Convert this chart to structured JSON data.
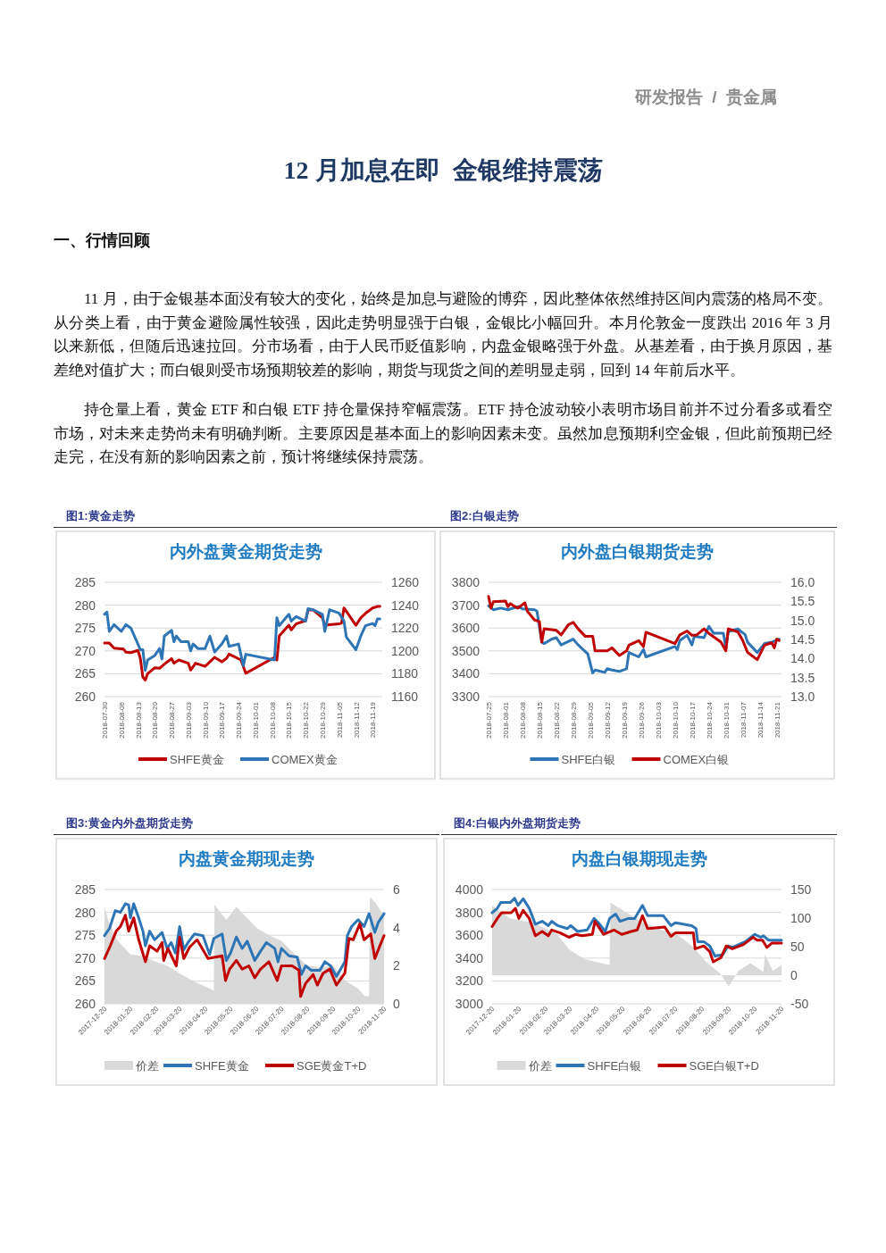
{
  "chart_data": [
    {
      "type": "other",
      "title": "12 月加息在即  金银维持震荡",
      "annotations": [
        "研发报告  /  贵金属",
        "一、行情回顾",
        "11 月，由于金银基本面没有较大的变化，始终是加息与避险的博弈，因此整体依然维持区间内震荡的格局不变。从分类上看，由于黄金避险属性较强，因此走势明显强于白银，金银比小幅回升。本月伦敦金一度跌出 2016 年 3 月以来新低，但随后迅速拉回。分市场看，由于人民币贬值影响，内盘金银略强于外盘。从基差看，由于换月原因，基差绝对值扩大；而白银则受市场预期较差的影响，期货与现货之间的差明显走弱，回到 14 年前后水平。",
        "持仓量上看，黄金 ETF 和白银 ETF 持仓量保持窄幅震荡。ETF 持仓波动较小表明市场目前并不过分看多或看空市场，对未来走势尚未有明确判断。主要原因是基本面上的影响因素未变。虽然加息预期利空金银，但此前预期已经走完，在没有新的影响因素之前，预计将继续保持震荡。"
      ]
    },
    {
      "type": "line",
      "subtitle": "图1:黄金走势",
      "title": "内外盘黄金期货走势",
      "xlim": [
        "2018-07-30",
        "2018-11-23"
      ],
      "xticks": [
        "2018-07-30",
        "2018-08-06",
        "2018-08-13",
        "2018-08-20",
        "2018-08-27",
        "2018-09-03",
        "2018-09-10",
        "2018-09-17",
        "2018-09-24",
        "2018-10-01",
        "2018-10-08",
        "2018-10-15",
        "2018-10-22",
        "2018-10-29",
        "2018-11-05",
        "2018-11-12",
        "2018-11-19"
      ],
      "ylim": [
        260,
        285
      ],
      "yticks": [
        260,
        265,
        270,
        275,
        280,
        285
      ],
      "y2lim": [
        1160,
        1260
      ],
      "y2ticks": [
        1160,
        1180,
        1200,
        1220,
        1240,
        1260
      ],
      "grid": "y",
      "legend": "bottom",
      "series": [
        {
          "name": "SHFE黄金",
          "color": "#c00000",
          "x": [
            "2018-07-30",
            "2018-08-01",
            "2018-08-03",
            "2018-08-07",
            "2018-08-08",
            "2018-08-10",
            "2018-08-13",
            "2018-08-14",
            "2018-08-15",
            "2018-08-16",
            "2018-08-17",
            "2018-08-20",
            "2018-08-22",
            "2018-08-24",
            "2018-08-27",
            "2018-08-28",
            "2018-08-30",
            "2018-09-03",
            "2018-09-04",
            "2018-09-06",
            "2018-09-10",
            "2018-09-12",
            "2018-09-14",
            "2018-09-17",
            "2018-09-19",
            "2018-09-20",
            "2018-09-25",
            "2018-09-27",
            "2018-10-09",
            "2018-10-10",
            "2018-10-11",
            "2018-10-15",
            "2018-10-16",
            "2018-10-18",
            "2018-10-19",
            "2018-10-22",
            "2018-10-23",
            "2018-10-25",
            "2018-10-29",
            "2018-10-30",
            "2018-11-05",
            "2018-11-06",
            "2018-11-07",
            "2018-11-12",
            "2018-11-14",
            "2018-11-16",
            "2018-11-19",
            "2018-11-21",
            "2018-11-22"
          ],
          "values": [
            271.7,
            271.7,
            270.6,
            270.4,
            269.7,
            269.6,
            270.1,
            268.3,
            264.3,
            263.6,
            265.0,
            266.3,
            266.2,
            267.1,
            268.3,
            267.3,
            268.0,
            267.3,
            265.8,
            267.3,
            266.6,
            267.6,
            268.6,
            267.6,
            268.4,
            269.3,
            268.0,
            265.1,
            268.6,
            268.0,
            273.3,
            275.6,
            274.6,
            275.9,
            276.1,
            276.6,
            278.9,
            279.0,
            277.2,
            275.6,
            275.9,
            276.1,
            279.4,
            275.6,
            277.2,
            278.2,
            279.4,
            279.7,
            279.7
          ]
        },
        {
          "name": "COMEX黄金",
          "color": "#2e75b6",
          "axis": "y2",
          "x": [
            "2018-07-30",
            "2018-07-31",
            "2018-08-01",
            "2018-08-03",
            "2018-08-06",
            "2018-08-08",
            "2018-08-10",
            "2018-08-14",
            "2018-08-15",
            "2018-08-16",
            "2018-08-17",
            "2018-08-20",
            "2018-08-22",
            "2018-08-23",
            "2018-08-24",
            "2018-08-27",
            "2018-08-28",
            "2018-08-29",
            "2018-08-31",
            "2018-09-03",
            "2018-09-04",
            "2018-09-05",
            "2018-09-07",
            "2018-09-10",
            "2018-09-12",
            "2018-09-14",
            "2018-09-17",
            "2018-09-19",
            "2018-09-20",
            "2018-09-24",
            "2018-09-26",
            "2018-09-27",
            "2018-10-09",
            "2018-10-10",
            "2018-10-11",
            "2018-10-15",
            "2018-10-16",
            "2018-10-18",
            "2018-10-22",
            "2018-10-23",
            "2018-10-25",
            "2018-10-29",
            "2018-10-30",
            "2018-11-01",
            "2018-11-05",
            "2018-11-07",
            "2018-11-08",
            "2018-11-12",
            "2018-11-14",
            "2018-11-16",
            "2018-11-19",
            "2018-11-20",
            "2018-11-21",
            "2018-11-22"
          ],
          "values": [
            1232,
            1234,
            1217,
            1223,
            1217,
            1223,
            1220,
            1201,
            1201,
            1183,
            1192,
            1196,
            1202,
            1193,
            1213,
            1218,
            1208,
            1213,
            1208,
            1208,
            1200,
            1206,
            1202,
            1202,
            1213,
            1199,
            1206,
            1213,
            1204,
            1206,
            1187,
            1197,
            1192,
            1229,
            1222,
            1232,
            1226,
            1230,
            1226,
            1237,
            1236,
            1232,
            1217,
            1236,
            1233,
            1226,
            1212,
            1201,
            1213,
            1222,
            1224,
            1222,
            1228,
            1228
          ]
        }
      ]
    },
    {
      "type": "line",
      "subtitle": "图2:白银走势",
      "title": "内外盘白银期货走势",
      "xlim": [
        "2018-07-25",
        "2018-11-23"
      ],
      "xticks": [
        "2018-07-25",
        "2018-08-01",
        "2018-08-08",
        "2018-08-15",
        "2018-08-22",
        "2018-08-29",
        "2018-09-05",
        "2018-09-12",
        "2018-09-19",
        "2018-09-26",
        "2018-10-03",
        "2018-10-10",
        "2018-10-17",
        "2018-10-24",
        "2018-10-31",
        "2018-11-07",
        "2018-11-14",
        "2018-11-21"
      ],
      "ylim": [
        3300,
        3800
      ],
      "yticks": [
        3300,
        3400,
        3500,
        3600,
        3700,
        3800
      ],
      "y2lim": [
        13,
        16
      ],
      "y2ticks": [
        {
          "value": 13,
          "label": "13.0"
        },
        {
          "value": 13.5,
          "label": "13.5"
        },
        {
          "value": 14,
          "label": "14.0"
        },
        {
          "value": 14.5,
          "label": "14.5"
        },
        {
          "value": 15,
          "label": "15.0"
        },
        {
          "value": 15.5,
          "label": "15.5"
        },
        {
          "value": 16,
          "label": "16.0"
        }
      ],
      "grid": "y",
      "legend": "bottom",
      "series": [
        {
          "name": "SHFE白银",
          "color": "#2e75b6",
          "x": [
            "2018-07-25",
            "2018-07-27",
            "2018-07-30",
            "2018-08-02",
            "2018-08-06",
            "2018-08-08",
            "2018-08-13",
            "2018-08-14",
            "2018-08-16",
            "2018-08-17",
            "2018-08-20",
            "2018-08-22",
            "2018-08-24",
            "2018-08-29",
            "2018-08-31",
            "2018-09-04",
            "2018-09-06",
            "2018-09-07",
            "2018-09-11",
            "2018-09-12",
            "2018-09-14",
            "2018-09-17",
            "2018-09-20",
            "2018-09-21",
            "2018-09-25",
            "2018-09-27",
            "2018-09-28",
            "2018-10-10",
            "2018-10-11",
            "2018-10-12",
            "2018-10-15",
            "2018-10-17",
            "2018-10-18",
            "2018-10-22",
            "2018-10-24",
            "2018-10-26",
            "2018-10-30",
            "2018-10-31",
            "2018-11-01",
            "2018-11-05",
            "2018-11-08",
            "2018-11-09",
            "2018-11-13",
            "2018-11-16",
            "2018-11-19",
            "2018-11-22"
          ],
          "values": [
            3697,
            3680,
            3687,
            3680,
            3693,
            3684,
            3680,
            3674,
            3538,
            3532,
            3551,
            3558,
            3526,
            3551,
            3526,
            3487,
            3403,
            3416,
            3406,
            3422,
            3416,
            3410,
            3422,
            3493,
            3474,
            3506,
            3474,
            3519,
            3506,
            3545,
            3568,
            3526,
            3564,
            3558,
            3607,
            3577,
            3577,
            3513,
            3584,
            3596,
            3571,
            3538,
            3493,
            3532,
            3538,
            3551
          ]
        },
        {
          "name": "COMEX白银",
          "color": "#c00000",
          "axis": "y2",
          "x": [
            "2018-07-25",
            "2018-07-26",
            "2018-07-27",
            "2018-08-01",
            "2018-08-02",
            "2018-08-03",
            "2018-08-06",
            "2018-08-09",
            "2018-08-10",
            "2018-08-13",
            "2018-08-15",
            "2018-08-16",
            "2018-08-17",
            "2018-08-22",
            "2018-08-24",
            "2018-08-27",
            "2018-08-29",
            "2018-08-31",
            "2018-09-03",
            "2018-09-06",
            "2018-09-07",
            "2018-09-12",
            "2018-09-14",
            "2018-09-17",
            "2018-09-20",
            "2018-09-21",
            "2018-09-25",
            "2018-09-27",
            "2018-09-28",
            "2018-10-10",
            "2018-10-12",
            "2018-10-15",
            "2018-10-17",
            "2018-10-19",
            "2018-10-22",
            "2018-10-24",
            "2018-10-29",
            "2018-10-31",
            "2018-11-01",
            "2018-11-05",
            "2018-11-07",
            "2018-11-09",
            "2018-11-13",
            "2018-11-16",
            "2018-11-19",
            "2018-11-20",
            "2018-11-21",
            "2018-11-22"
          ],
          "values": [
            15.63,
            15.32,
            15.49,
            15.51,
            15.36,
            15.44,
            15.32,
            15.46,
            15.24,
            15.01,
            14.97,
            14.43,
            14.78,
            14.74,
            14.62,
            14.89,
            14.95,
            14.78,
            14.58,
            14.58,
            14.2,
            14.2,
            14.28,
            14.08,
            14.2,
            14.35,
            14.47,
            14.31,
            14.69,
            14.39,
            14.62,
            14.72,
            14.61,
            14.62,
            14.78,
            14.66,
            14.43,
            14.2,
            14.78,
            14.7,
            14.47,
            14.16,
            13.97,
            14.35,
            14.41,
            14.28,
            14.51,
            14.47
          ]
        }
      ]
    },
    {
      "type": "line",
      "subtitle": "图3:黄金内外盘期货走势",
      "title": "内盘黄金期现走势",
      "xlim": [
        "2017-12-20",
        "2018-11-20"
      ],
      "xticks": [
        "2017-12-20",
        "2018-01-20",
        "2018-02-20",
        "2018-03-20",
        "2018-04-20",
        "2018-05-20",
        "2018-06-20",
        "2018-07-20",
        "2018-08-20",
        "2018-09-20",
        "2018-10-20",
        "2018-11-20"
      ],
      "ylim": [
        260,
        285
      ],
      "yticks": [
        260,
        265,
        270,
        275,
        280,
        285
      ],
      "y2lim": [
        0,
        6
      ],
      "y2ticks": [
        0,
        2,
        4,
        6
      ],
      "grid": "y",
      "legend": "bottom",
      "series": [
        {
          "name": "价差",
          "type": "area",
          "color": "#d9d9d9",
          "axis": "y2",
          "x": [
            "2017-12-20",
            "2017-12-25",
            "2018-01-05",
            "2018-01-20",
            "2018-02-05",
            "2018-02-20",
            "2018-03-05",
            "2018-03-20",
            "2018-04-05",
            "2018-04-20",
            "2018-04-30",
            "2018-05-01",
            "2018-05-15",
            "2018-05-27",
            "2018-06-20",
            "2018-07-05",
            "2018-07-20",
            "2018-08-05",
            "2018-08-20",
            "2018-09-05",
            "2018-09-20",
            "2018-10-05",
            "2018-10-20",
            "2018-10-28",
            "2018-11-02",
            "2018-11-03",
            "2018-11-10",
            "2018-11-20"
          ],
          "values": [
            5.1,
            4.3,
            3.3,
            2.6,
            2.5,
            2.2,
            2.0,
            1.6,
            1.2,
            0.9,
            0.7,
            5.2,
            4.4,
            5.1,
            4.0,
            3.6,
            3.3,
            2.6,
            2.0,
            1.9,
            2.0,
            1.2,
            0.8,
            0.4,
            0.4,
            5.6,
            5.3,
            4.6
          ]
        },
        {
          "name": "SHFE黄金",
          "color": "#2e75b6",
          "x": [
            "2017-12-20",
            "2017-12-26",
            "2018-01-02",
            "2018-01-08",
            "2018-01-14",
            "2018-01-18",
            "2018-01-20",
            "2018-01-24",
            "2018-01-30",
            "2018-02-04",
            "2018-02-07",
            "2018-02-12",
            "2018-02-18",
            "2018-02-27",
            "2018-03-05",
            "2018-03-10",
            "2018-03-15",
            "2018-03-16",
            "2018-03-20",
            "2018-03-25",
            "2018-03-30",
            "2018-04-07",
            "2018-04-17",
            "2018-04-25",
            "2018-04-30",
            "2018-05-10",
            "2018-05-15",
            "2018-05-20",
            "2018-05-27",
            "2018-06-03",
            "2018-06-09",
            "2018-06-18",
            "2018-06-25",
            "2018-07-02",
            "2018-07-12",
            "2018-07-16",
            "2018-07-20",
            "2018-07-29",
            "2018-08-08",
            "2018-08-13",
            "2018-08-18",
            "2018-08-25",
            "2018-09-04",
            "2018-09-10",
            "2018-09-17",
            "2018-09-24",
            "2018-10-04",
            "2018-10-07",
            "2018-10-12",
            "2018-10-20",
            "2018-10-27",
            "2018-11-02",
            "2018-11-09",
            "2018-11-13",
            "2018-11-20"
          ],
          "values": [
            274.9,
            276.5,
            280.4,
            280.0,
            281.9,
            281.6,
            278.8,
            281.9,
            278.8,
            275.9,
            272.7,
            275.9,
            274.0,
            275.6,
            272.1,
            273.4,
            271.1,
            272.1,
            276.9,
            271.8,
            273.4,
            275.3,
            274.9,
            270.8,
            274.3,
            275.3,
            269.5,
            271.1,
            274.6,
            272.1,
            273.7,
            269.5,
            271.5,
            273.4,
            272.1,
            269.2,
            272.1,
            270.5,
            270.2,
            266.4,
            268.3,
            267.3,
            267.3,
            269.2,
            268.3,
            266.0,
            269.2,
            274.9,
            276.9,
            278.4,
            276.9,
            279.7,
            275.6,
            277.8,
            279.7
          ]
        },
        {
          "name": "SGE黄金T+D",
          "color": "#c00000",
          "x": [
            "2017-12-20",
            "2017-12-27",
            "2018-01-03",
            "2018-01-08",
            "2018-01-14",
            "2018-01-18",
            "2018-01-24",
            "2018-01-30",
            "2018-02-07",
            "2018-02-12",
            "2018-02-21",
            "2018-02-27",
            "2018-03-01",
            "2018-03-06",
            "2018-03-16",
            "2018-03-20",
            "2018-03-25",
            "2018-04-01",
            "2018-04-10",
            "2018-04-23",
            "2018-05-10",
            "2018-05-14",
            "2018-05-19",
            "2018-05-27",
            "2018-06-03",
            "2018-06-11",
            "2018-06-18",
            "2018-06-25",
            "2018-07-05",
            "2018-07-15",
            "2018-07-20",
            "2018-08-02",
            "2018-08-10",
            "2018-08-12",
            "2018-08-18",
            "2018-08-27",
            "2018-09-01",
            "2018-09-08",
            "2018-09-16",
            "2018-09-24",
            "2018-10-04",
            "2018-10-09",
            "2018-10-14",
            "2018-10-22",
            "2018-10-27",
            "2018-11-04",
            "2018-11-09",
            "2018-11-15",
            "2018-11-20"
          ],
          "values": [
            269.9,
            272.7,
            275.9,
            276.9,
            279.4,
            275.9,
            278.8,
            274.0,
            269.2,
            272.7,
            271.5,
            273.4,
            269.5,
            272.1,
            268.3,
            274.6,
            269.9,
            272.4,
            274.0,
            269.9,
            270.5,
            265.1,
            267.6,
            269.5,
            267.6,
            268.3,
            265.7,
            267.6,
            269.2,
            265.1,
            268.3,
            268.3,
            267.3,
            261.6,
            264.5,
            266.4,
            264.1,
            266.7,
            267.6,
            264.1,
            266.7,
            274.3,
            274.0,
            277.5,
            274.0,
            275.3,
            269.9,
            272.7,
            274.9
          ]
        }
      ]
    },
    {
      "type": "line",
      "subtitle": "图4:白银内外盘期货走势",
      "title": "内盘白银期现走势",
      "xlim": [
        "2017-12-20",
        "2018-11-20"
      ],
      "xticks": [
        "2017-12-20",
        "2018-01-20",
        "2018-02-20",
        "2018-03-20",
        "2018-04-20",
        "2018-05-20",
        "2018-06-20",
        "2018-07-20",
        "2018-08-20",
        "2018-09-20",
        "2018-10-20",
        "2018-11-20"
      ],
      "ylim": [
        3000,
        4000
      ],
      "yticks": [
        3000,
        3200,
        3400,
        3600,
        3800,
        4000
      ],
      "y2lim": [
        -50,
        150
      ],
      "y2ticks": [
        {
          "value": -50,
          "label": "-50"
        },
        0,
        50,
        100,
        150
      ],
      "grid": "y",
      "legend": "bottom",
      "series": [
        {
          "name": "价差",
          "type": "area",
          "color": "#d9d9d9",
          "axis": "y2",
          "x": [
            "2017-12-20",
            "2018-01-10",
            "2018-02-05",
            "2018-03-05",
            "2018-03-20",
            "2018-04-05",
            "2018-04-20",
            "2018-05-05",
            "2018-05-06",
            "2018-05-20",
            "2018-06-10",
            "2018-07-05",
            "2018-07-20",
            "2018-08-10",
            "2018-08-25",
            "2018-09-10",
            "2018-09-20",
            "2018-10-01",
            "2018-10-15",
            "2018-10-30",
            "2018-11-01",
            "2018-11-10",
            "2018-11-20"
          ],
          "values": [
            122,
            99,
            92,
            72,
            44,
            29,
            23,
            18,
            127,
            114,
            94,
            79,
            74,
            49,
            23,
            3,
            -20,
            8,
            21,
            6,
            36,
            8,
            18
          ]
        },
        {
          "name": "SHFE白银",
          "color": "#2e75b6",
          "x": [
            "2017-12-20",
            "2017-12-26",
            "2017-12-30",
            "2018-01-10",
            "2018-01-15",
            "2018-01-19",
            "2018-01-25",
            "2018-02-01",
            "2018-02-08",
            "2018-02-16",
            "2018-02-23",
            "2018-02-27",
            "2018-03-06",
            "2018-03-17",
            "2018-03-21",
            "2018-03-29",
            "2018-04-09",
            "2018-04-17",
            "2018-04-22",
            "2018-04-30",
            "2018-05-05",
            "2018-05-12",
            "2018-05-17",
            "2018-05-27",
            "2018-06-03",
            "2018-06-12",
            "2018-06-18",
            "2018-07-06",
            "2018-07-15",
            "2018-07-20",
            "2018-08-08",
            "2018-08-13",
            "2018-08-15",
            "2018-08-22",
            "2018-08-29",
            "2018-09-04",
            "2018-09-13",
            "2018-09-19",
            "2018-09-24",
            "2018-10-09",
            "2018-10-20",
            "2018-10-27",
            "2018-10-30",
            "2018-11-05",
            "2018-11-13",
            "2018-11-20"
          ],
          "values": [
            3797,
            3835,
            3886,
            3886,
            3924,
            3861,
            3919,
            3835,
            3696,
            3722,
            3684,
            3722,
            3684,
            3658,
            3684,
            3633,
            3646,
            3747,
            3709,
            3633,
            3747,
            3785,
            3722,
            3747,
            3747,
            3861,
            3772,
            3772,
            3684,
            3709,
            3684,
            3658,
            3544,
            3544,
            3506,
            3418,
            3430,
            3506,
            3494,
            3544,
            3608,
            3582,
            3595,
            3557,
            3557,
            3557
          ]
        },
        {
          "name": "SGE白银T+D",
          "color": "#c00000",
          "x": [
            "2017-12-20",
            "2017-12-26",
            "2017-12-31",
            "2018-01-11",
            "2018-01-16",
            "2018-01-20",
            "2018-01-25",
            "2018-02-01",
            "2018-02-08",
            "2018-02-16",
            "2018-02-23",
            "2018-02-27",
            "2018-03-09",
            "2018-03-19",
            "2018-03-27",
            "2018-04-03",
            "2018-04-15",
            "2018-04-18",
            "2018-04-28",
            "2018-05-10",
            "2018-05-19",
            "2018-05-30",
            "2018-06-06",
            "2018-06-12",
            "2018-06-18",
            "2018-07-08",
            "2018-07-15",
            "2018-07-20",
            "2018-08-10",
            "2018-08-12",
            "2018-08-22",
            "2018-08-29",
            "2018-09-02",
            "2018-09-11",
            "2018-09-17",
            "2018-09-24",
            "2018-10-07",
            "2018-10-18",
            "2018-10-23",
            "2018-10-29",
            "2018-11-03",
            "2018-11-09",
            "2018-11-20"
          ],
          "values": [
            3676,
            3747,
            3797,
            3797,
            3835,
            3747,
            3818,
            3747,
            3595,
            3633,
            3595,
            3646,
            3620,
            3582,
            3608,
            3595,
            3608,
            3722,
            3608,
            3646,
            3608,
            3633,
            3646,
            3772,
            3658,
            3671,
            3590,
            3620,
            3620,
            3481,
            3506,
            3456,
            3367,
            3405,
            3506,
            3481,
            3519,
            3582,
            3557,
            3557,
            3494,
            3532,
            3532
          ]
        }
      ]
    }
  ]
}
